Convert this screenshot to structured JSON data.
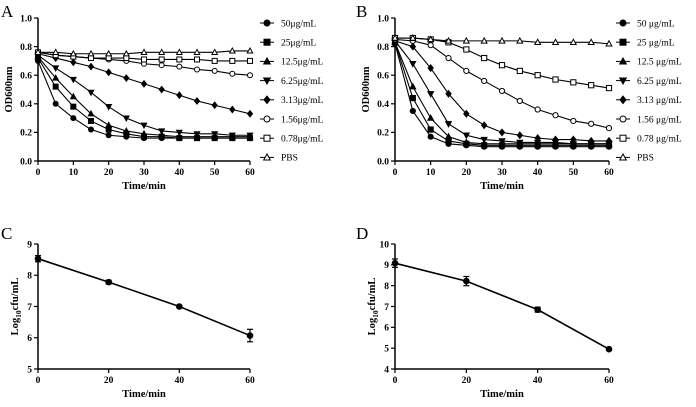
{
  "chart_data": [
    {
      "panel": "A",
      "type": "line",
      "xlabel": "Time/min",
      "ylabel": "OD600nm",
      "xlim": [
        0,
        60
      ],
      "ylim": [
        0.0,
        1.0
      ],
      "xticks": [
        0,
        10,
        20,
        30,
        40,
        50,
        60
      ],
      "yticks": [
        "0.0",
        "0.2",
        "0.4",
        "0.6",
        "0.8",
        "1.0"
      ],
      "legend_placement": "right",
      "x": [
        0,
        5,
        10,
        15,
        20,
        25,
        30,
        35,
        40,
        45,
        50,
        55,
        60
      ],
      "series": [
        {
          "name": "50μg/mL",
          "marker": "circle-filled",
          "values": [
            0.7,
            0.4,
            0.3,
            0.22,
            0.18,
            0.17,
            0.16,
            0.16,
            0.16,
            0.16,
            0.16,
            0.16,
            0.16
          ]
        },
        {
          "name": "25μg/mL",
          "marker": "square-filled",
          "values": [
            0.72,
            0.52,
            0.38,
            0.28,
            0.22,
            0.19,
            0.17,
            0.17,
            0.16,
            0.16,
            0.16,
            0.16,
            0.16
          ]
        },
        {
          "name": "12.5μg/mL",
          "marker": "triangle-up-filled",
          "values": [
            0.73,
            0.58,
            0.45,
            0.33,
            0.25,
            0.21,
            0.19,
            0.18,
            0.17,
            0.17,
            0.17,
            0.17,
            0.17
          ]
        },
        {
          "name": "6.25μg/mL",
          "marker": "triangle-down-filled",
          "values": [
            0.74,
            0.65,
            0.57,
            0.48,
            0.38,
            0.3,
            0.25,
            0.21,
            0.2,
            0.19,
            0.19,
            0.18,
            0.18
          ]
        },
        {
          "name": "3.13μg/mL",
          "marker": "diamond-filled",
          "values": [
            0.75,
            0.72,
            0.69,
            0.66,
            0.62,
            0.58,
            0.54,
            0.5,
            0.46,
            0.42,
            0.39,
            0.36,
            0.33
          ]
        },
        {
          "name": "1.56μg/mL",
          "marker": "circle-open",
          "values": [
            0.76,
            0.74,
            0.73,
            0.72,
            0.71,
            0.7,
            0.68,
            0.67,
            0.66,
            0.64,
            0.63,
            0.61,
            0.6
          ]
        },
        {
          "name": "0.78μg/mL",
          "marker": "square-open",
          "values": [
            0.76,
            0.74,
            0.73,
            0.72,
            0.72,
            0.72,
            0.71,
            0.71,
            0.71,
            0.71,
            0.7,
            0.7,
            0.7
          ]
        },
        {
          "name": "PBS",
          "marker": "triangle-up-open",
          "values": [
            0.76,
            0.76,
            0.75,
            0.75,
            0.75,
            0.75,
            0.76,
            0.76,
            0.76,
            0.76,
            0.76,
            0.77,
            0.77
          ]
        }
      ]
    },
    {
      "panel": "B",
      "type": "line",
      "xlabel": "Time/min",
      "ylabel": "OD600nm",
      "xlim": [
        0,
        60
      ],
      "ylim": [
        0.0,
        1.0
      ],
      "xticks": [
        0,
        10,
        20,
        30,
        40,
        50,
        60
      ],
      "yticks": [
        "0.0",
        "0.2",
        "0.4",
        "0.6",
        "0.8",
        "1.0"
      ],
      "legend_placement": "right",
      "x": [
        0,
        5,
        10,
        15,
        20,
        25,
        30,
        35,
        40,
        45,
        50,
        55,
        60
      ],
      "series": [
        {
          "name": "50 μg/mL",
          "marker": "circle-filled",
          "values": [
            0.82,
            0.35,
            0.17,
            0.12,
            0.11,
            0.1,
            0.1,
            0.1,
            0.1,
            0.1,
            0.1,
            0.1,
            0.1
          ]
        },
        {
          "name": "25 μg/mL",
          "marker": "square-filled",
          "values": [
            0.83,
            0.44,
            0.22,
            0.14,
            0.12,
            0.11,
            0.11,
            0.11,
            0.11,
            0.11,
            0.11,
            0.11,
            0.11
          ]
        },
        {
          "name": "12.5 μg/mL",
          "marker": "triangle-up-filled",
          "values": [
            0.83,
            0.52,
            0.3,
            0.17,
            0.13,
            0.12,
            0.12,
            0.12,
            0.12,
            0.12,
            0.12,
            0.12,
            0.12
          ]
        },
        {
          "name": "6.25 μg/mL",
          "marker": "triangle-down-filled",
          "values": [
            0.84,
            0.68,
            0.47,
            0.26,
            0.18,
            0.15,
            0.14,
            0.13,
            0.13,
            0.13,
            0.12,
            0.12,
            0.12
          ]
        },
        {
          "name": "3.13 μg/mL",
          "marker": "diamond-filled",
          "values": [
            0.84,
            0.8,
            0.65,
            0.47,
            0.33,
            0.25,
            0.2,
            0.18,
            0.16,
            0.15,
            0.15,
            0.14,
            0.14
          ]
        },
        {
          "name": "1.56 μg/mL",
          "marker": "circle-open",
          "values": [
            0.85,
            0.84,
            0.81,
            0.72,
            0.63,
            0.56,
            0.49,
            0.42,
            0.36,
            0.32,
            0.28,
            0.26,
            0.23
          ]
        },
        {
          "name": "0.78 μg/mL",
          "marker": "square-open",
          "values": [
            0.86,
            0.86,
            0.85,
            0.83,
            0.78,
            0.72,
            0.67,
            0.63,
            0.6,
            0.57,
            0.55,
            0.53,
            0.51
          ]
        },
        {
          "name": "PBS",
          "marker": "triangle-up-open",
          "values": [
            0.86,
            0.86,
            0.85,
            0.84,
            0.84,
            0.84,
            0.84,
            0.84,
            0.83,
            0.83,
            0.83,
            0.83,
            0.82
          ]
        }
      ]
    },
    {
      "panel": "C",
      "type": "line",
      "xlabel": "Time/min",
      "ylabel": "Log10cfu/mL",
      "ylabel_parts": {
        "base": "Log",
        "sub": "10",
        "rest": "cfu/mL"
      },
      "xlim": [
        0,
        60
      ],
      "ylim": [
        5,
        9
      ],
      "xticks": [
        0,
        20,
        40,
        60
      ],
      "yticks": [
        "5",
        "6",
        "7",
        "8",
        "9"
      ],
      "x": [
        0,
        20,
        40,
        60
      ],
      "series": [
        {
          "values": [
            8.53,
            7.78,
            7.0,
            6.07
          ],
          "errors": [
            0.1,
            0.06,
            0.03,
            0.2
          ]
        }
      ]
    },
    {
      "panel": "D",
      "type": "line",
      "xlabel": "Time/min",
      "ylabel": "Log10cfu/mL",
      "ylabel_parts": {
        "base": "Log",
        "sub": "10",
        "rest": "cfu/mL"
      },
      "xlim": [
        0,
        60
      ],
      "ylim": [
        4,
        10
      ],
      "xticks": [
        0,
        20,
        40,
        60
      ],
      "yticks": [
        "4",
        "5",
        "6",
        "7",
        "8",
        "9",
        "10"
      ],
      "x": [
        0,
        20,
        40,
        60
      ],
      "series": [
        {
          "values": [
            9.08,
            8.22,
            6.85,
            4.95
          ],
          "errors": [
            0.2,
            0.22,
            0.12,
            0.06
          ]
        }
      ]
    }
  ]
}
